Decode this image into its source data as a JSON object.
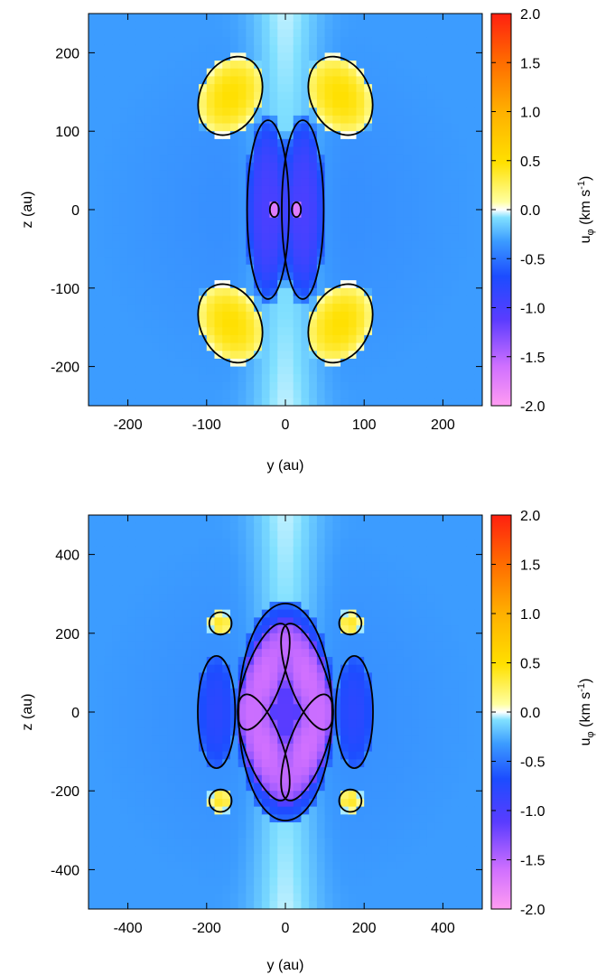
{
  "chart_data": [
    {
      "type": "heatmap",
      "title": "",
      "xlabel": "y (au)",
      "ylabel": "z (au)",
      "xlim": [
        -250,
        250
      ],
      "ylim": [
        -250,
        250
      ],
      "xticks": [
        -200,
        -100,
        0,
        100,
        200
      ],
      "xtick_labels": [
        "-200",
        "-100",
        "0",
        "100",
        "200"
      ],
      "yticks": [
        -200,
        -100,
        0,
        100,
        200
      ],
      "ytick_labels": [
        "-200",
        "-100",
        "0",
        "100",
        "200"
      ],
      "colorbar": {
        "label": "u_φ (km s⁻¹)",
        "range": [
          -2.0,
          2.0
        ],
        "ticks": [
          2.0,
          1.5,
          1.0,
          0.5,
          0.0,
          -0.5,
          -1.0,
          -1.5,
          -2.0
        ],
        "tick_labels": [
          "2.0",
          "1.5",
          "1.0",
          "0.5",
          "0.0",
          "-0.5",
          "-1.0",
          "-1.5",
          "-2.0"
        ]
      },
      "features": [
        {
          "kind": "lobe",
          "cx": 70,
          "cz": 145,
          "a": 40,
          "b": 55,
          "value": 0.5,
          "tilt": 25
        },
        {
          "kind": "lobe",
          "cx": -70,
          "cz": 145,
          "a": 40,
          "b": 55,
          "value": 0.5,
          "tilt": -25
        },
        {
          "kind": "lobe",
          "cx": 70,
          "cz": -145,
          "a": 40,
          "b": 55,
          "value": 0.5,
          "tilt": -25
        },
        {
          "kind": "lobe",
          "cx": -70,
          "cz": -145,
          "a": 40,
          "b": 55,
          "value": 0.5,
          "tilt": 25
        },
        {
          "kind": "lobe",
          "cx": 22,
          "cz": 0,
          "a": 28,
          "b": 120,
          "value": -1.0,
          "tilt": 0
        },
        {
          "kind": "lobe",
          "cx": -22,
          "cz": 0,
          "a": 28,
          "b": 120,
          "value": -1.0,
          "tilt": 0
        },
        {
          "kind": "lobe",
          "cx": 14,
          "cz": 0,
          "a": 6,
          "b": 10,
          "value": -1.8,
          "tilt": 0
        },
        {
          "kind": "lobe",
          "cx": -14,
          "cz": 0,
          "a": 6,
          "b": 10,
          "value": -1.8,
          "tilt": 0
        }
      ],
      "background_value": -0.4
    },
    {
      "type": "heatmap",
      "title": "",
      "xlabel": "y (au)",
      "ylabel": "z (au)",
      "xlim": [
        -500,
        500
      ],
      "ylim": [
        -500,
        500
      ],
      "xticks": [
        -400,
        -200,
        0,
        200,
        400
      ],
      "xtick_labels": [
        "-400",
        "-200",
        "0",
        "200",
        "400"
      ],
      "yticks": [
        -400,
        -200,
        0,
        200,
        400
      ],
      "ytick_labels": [
        "-400",
        "-200",
        "0",
        "200",
        "400"
      ],
      "colorbar": {
        "label": "u_φ (km s⁻¹)",
        "range": [
          -2.0,
          2.0
        ],
        "ticks": [
          2.0,
          1.5,
          1.0,
          0.5,
          0.0,
          -0.5,
          -1.0,
          -1.5,
          -2.0
        ],
        "tick_labels": [
          "2.0",
          "1.5",
          "1.0",
          "0.5",
          "0.0",
          "-0.5",
          "-1.0",
          "-1.5",
          "-2.0"
        ]
      },
      "features": [
        {
          "kind": "lobe",
          "cx": 0,
          "cz": 0,
          "a": 125,
          "b": 290,
          "value": -1.1,
          "tilt": 0
        },
        {
          "kind": "lobe",
          "cx": 55,
          "cz": 90,
          "a": 50,
          "b": 150,
          "value": -1.6,
          "tilt": 20
        },
        {
          "kind": "lobe",
          "cx": -55,
          "cz": 90,
          "a": 50,
          "b": 150,
          "value": -1.6,
          "tilt": -20
        },
        {
          "kind": "lobe",
          "cx": 55,
          "cz": -90,
          "a": 50,
          "b": 150,
          "value": -1.6,
          "tilt": -20
        },
        {
          "kind": "lobe",
          "cx": -55,
          "cz": -90,
          "a": 50,
          "b": 150,
          "value": -1.6,
          "tilt": 20
        },
        {
          "kind": "lobe",
          "cx": 175,
          "cz": 0,
          "a": 50,
          "b": 150,
          "value": -0.8,
          "tilt": 0
        },
        {
          "kind": "lobe",
          "cx": -175,
          "cz": 0,
          "a": 50,
          "b": 150,
          "value": -0.8,
          "tilt": 0
        },
        {
          "kind": "lobe",
          "cx": 165,
          "cz": 225,
          "a": 30,
          "b": 30,
          "value": 0.4,
          "tilt": 0
        },
        {
          "kind": "lobe",
          "cx": -165,
          "cz": 225,
          "a": 30,
          "b": 30,
          "value": 0.4,
          "tilt": 0
        },
        {
          "kind": "lobe",
          "cx": 165,
          "cz": -225,
          "a": 30,
          "b": 30,
          "value": 0.4,
          "tilt": 0
        },
        {
          "kind": "lobe",
          "cx": -165,
          "cz": -225,
          "a": 30,
          "b": 30,
          "value": 0.4,
          "tilt": 0
        }
      ],
      "background_value": -0.4
    }
  ],
  "colors": {
    "scale": [
      "#ffa0ff",
      "#e080ff",
      "#8040ff",
      "#1040ff",
      "#2080ff",
      "#40c0ff",
      "#a0f0ff",
      "#ffffc0",
      "#ffff00",
      "#ffc000",
      "#ff8000",
      "#ff4000",
      "#ff1010"
    ]
  }
}
